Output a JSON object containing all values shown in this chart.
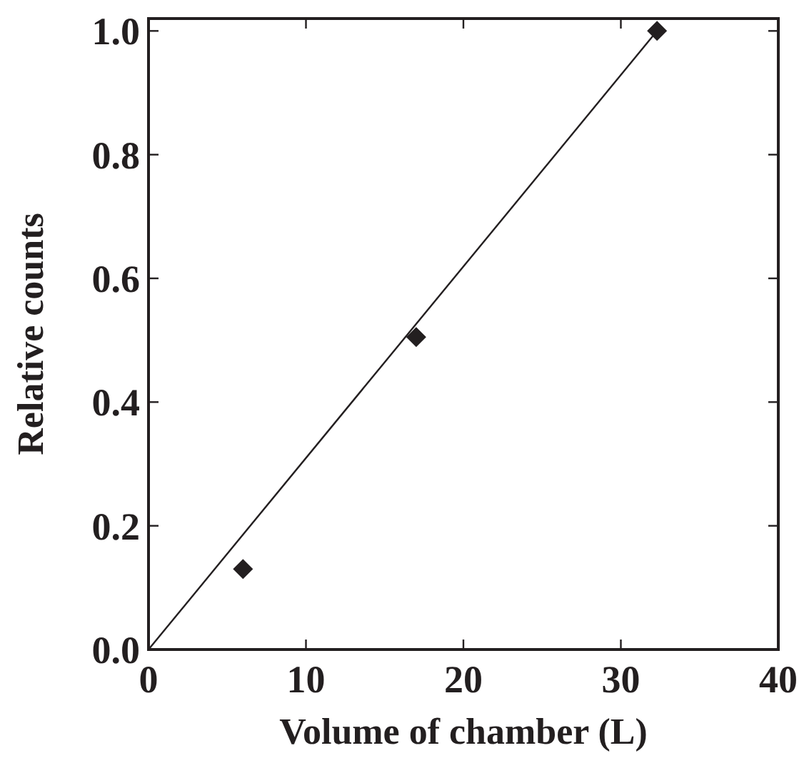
{
  "chart_data": {
    "type": "scatter",
    "xlabel": "Volume of chamber (L)",
    "ylabel": "Relative counts",
    "xlim": [
      0,
      40
    ],
    "xticks": [
      0,
      10,
      20,
      30,
      40
    ],
    "ylim": [
      0,
      1.02
    ],
    "yticks": [
      {
        "value": 0,
        "label": "0.0"
      },
      0.2,
      0.4,
      0.6,
      0.8,
      {
        "value": 1,
        "label": "1.0"
      }
    ],
    "grid": false,
    "series": [
      {
        "color": "#231f20",
        "marker": "diamond",
        "x": [
          6,
          17,
          32.3
        ],
        "values": [
          0.13,
          0.505,
          1.0
        ]
      },
      {
        "type": "line",
        "color": "#231f20",
        "marker": "none",
        "line_style": "solid",
        "x": [
          0,
          32.3
        ],
        "values": [
          0,
          1.0
        ]
      }
    ]
  }
}
